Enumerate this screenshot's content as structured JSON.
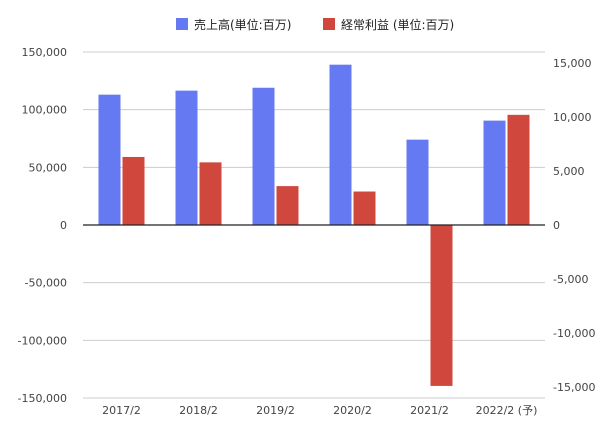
{
  "chart_data": {
    "type": "bar",
    "categories": [
      "2017/2",
      "2018/2",
      "2019/2",
      "2020/2",
      "2021/2",
      "2022/2 (予)"
    ],
    "series": [
      {
        "name": "売上高(単位:百万)",
        "axis": "left",
        "color": "#6479f2",
        "values": [
          113000,
          116500,
          119000,
          139000,
          74000,
          90500
        ]
      },
      {
        "name": "経常利益 (単位:百万)",
        "axis": "right",
        "color": "#d0473e",
        "values": [
          6300,
          5800,
          3600,
          3100,
          -14900,
          10200
        ]
      }
    ],
    "left_axis": {
      "ylim": [
        -150000,
        150000
      ],
      "ticks": [
        150000,
        100000,
        50000,
        0,
        -50000,
        -100000,
        -150000
      ],
      "tick_labels": [
        "150,000",
        "100,000",
        "50,000",
        "0",
        "-50,000",
        "-100,000",
        "-150,000"
      ]
    },
    "right_axis": {
      "ylim": [
        -16000,
        16000
      ],
      "ticks": [
        15000,
        10000,
        5000,
        0,
        -5000,
        -10000,
        -15000
      ],
      "tick_labels": [
        "15,000",
        "10,000",
        "5,000",
        "0",
        "-5,000",
        "-10,000",
        "-15,000"
      ]
    },
    "legend_position": "top",
    "grid": true
  }
}
